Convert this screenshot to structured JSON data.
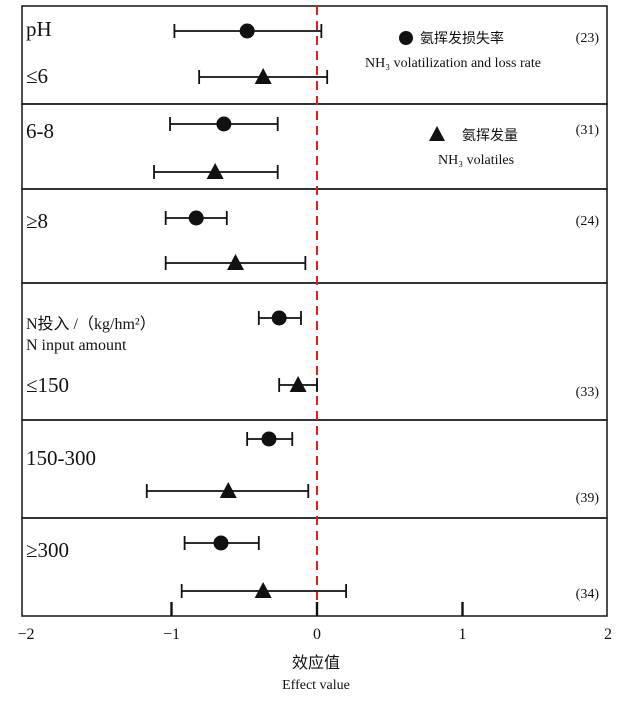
{
  "chart_data": {
    "type": "forest",
    "xlabel": "效应值",
    "xlabel_en": "Effect value",
    "xlim": [
      -2,
      2
    ],
    "xticks": [
      -2,
      -1,
      0,
      1,
      2
    ],
    "xtick_labels": [
      "−2",
      "−1",
      "0",
      "1",
      "2"
    ],
    "reference_line": 0,
    "reference_line_color": "#e02020",
    "grid": false,
    "legend_position": "top-right",
    "series": [
      {
        "name": "氨挥发损失率",
        "name_en": "NH₃ volatilization and loss rate",
        "marker": "circle"
      },
      {
        "name": "氨挥发量",
        "name_en": "NH₃ volatiles",
        "marker": "triangle"
      }
    ],
    "groups": [
      {
        "title": "pH",
        "labels": [
          "≤6"
        ],
        "count": "(23)",
        "rows": [
          {
            "series": 0,
            "mean": -0.48,
            "lo": -0.98,
            "hi": 0.03
          },
          {
            "series": 1,
            "mean": -0.37,
            "lo": -0.81,
            "hi": 0.07
          }
        ]
      },
      {
        "title": "",
        "labels": [
          "6-8"
        ],
        "count": "(31)",
        "rows": [
          {
            "series": 0,
            "mean": -0.64,
            "lo": -1.01,
            "hi": -0.27
          },
          {
            "series": 1,
            "mean": -0.7,
            "lo": -1.12,
            "hi": -0.27
          }
        ]
      },
      {
        "title": "",
        "labels": [
          "≥8"
        ],
        "count": "(24)",
        "rows": [
          {
            "series": 0,
            "mean": -0.83,
            "lo": -1.04,
            "hi": -0.62
          },
          {
            "series": 1,
            "mean": -0.56,
            "lo": -1.04,
            "hi": -0.08
          }
        ]
      },
      {
        "title": "N投入 /（kg/hm²）",
        "title_en": "N input amount",
        "labels": [
          "≤150"
        ],
        "count": "(33)",
        "rows": [
          {
            "series": 0,
            "mean": -0.26,
            "lo": -0.4,
            "hi": -0.11
          },
          {
            "series": 1,
            "mean": -0.13,
            "lo": -0.26,
            "hi": 0.0
          }
        ]
      },
      {
        "title": "",
        "labels": [
          "150-300"
        ],
        "count": "(39)",
        "rows": [
          {
            "series": 0,
            "mean": -0.33,
            "lo": -0.48,
            "hi": -0.17
          },
          {
            "series": 1,
            "mean": -0.61,
            "lo": -1.17,
            "hi": -0.06
          }
        ]
      },
      {
        "title": "",
        "labels": [
          "≥300"
        ],
        "count": "(34)",
        "rows": [
          {
            "series": 0,
            "mean": -0.66,
            "lo": -0.91,
            "hi": -0.4
          },
          {
            "series": 1,
            "mean": -0.37,
            "lo": -0.93,
            "hi": 0.2
          }
        ]
      }
    ]
  }
}
